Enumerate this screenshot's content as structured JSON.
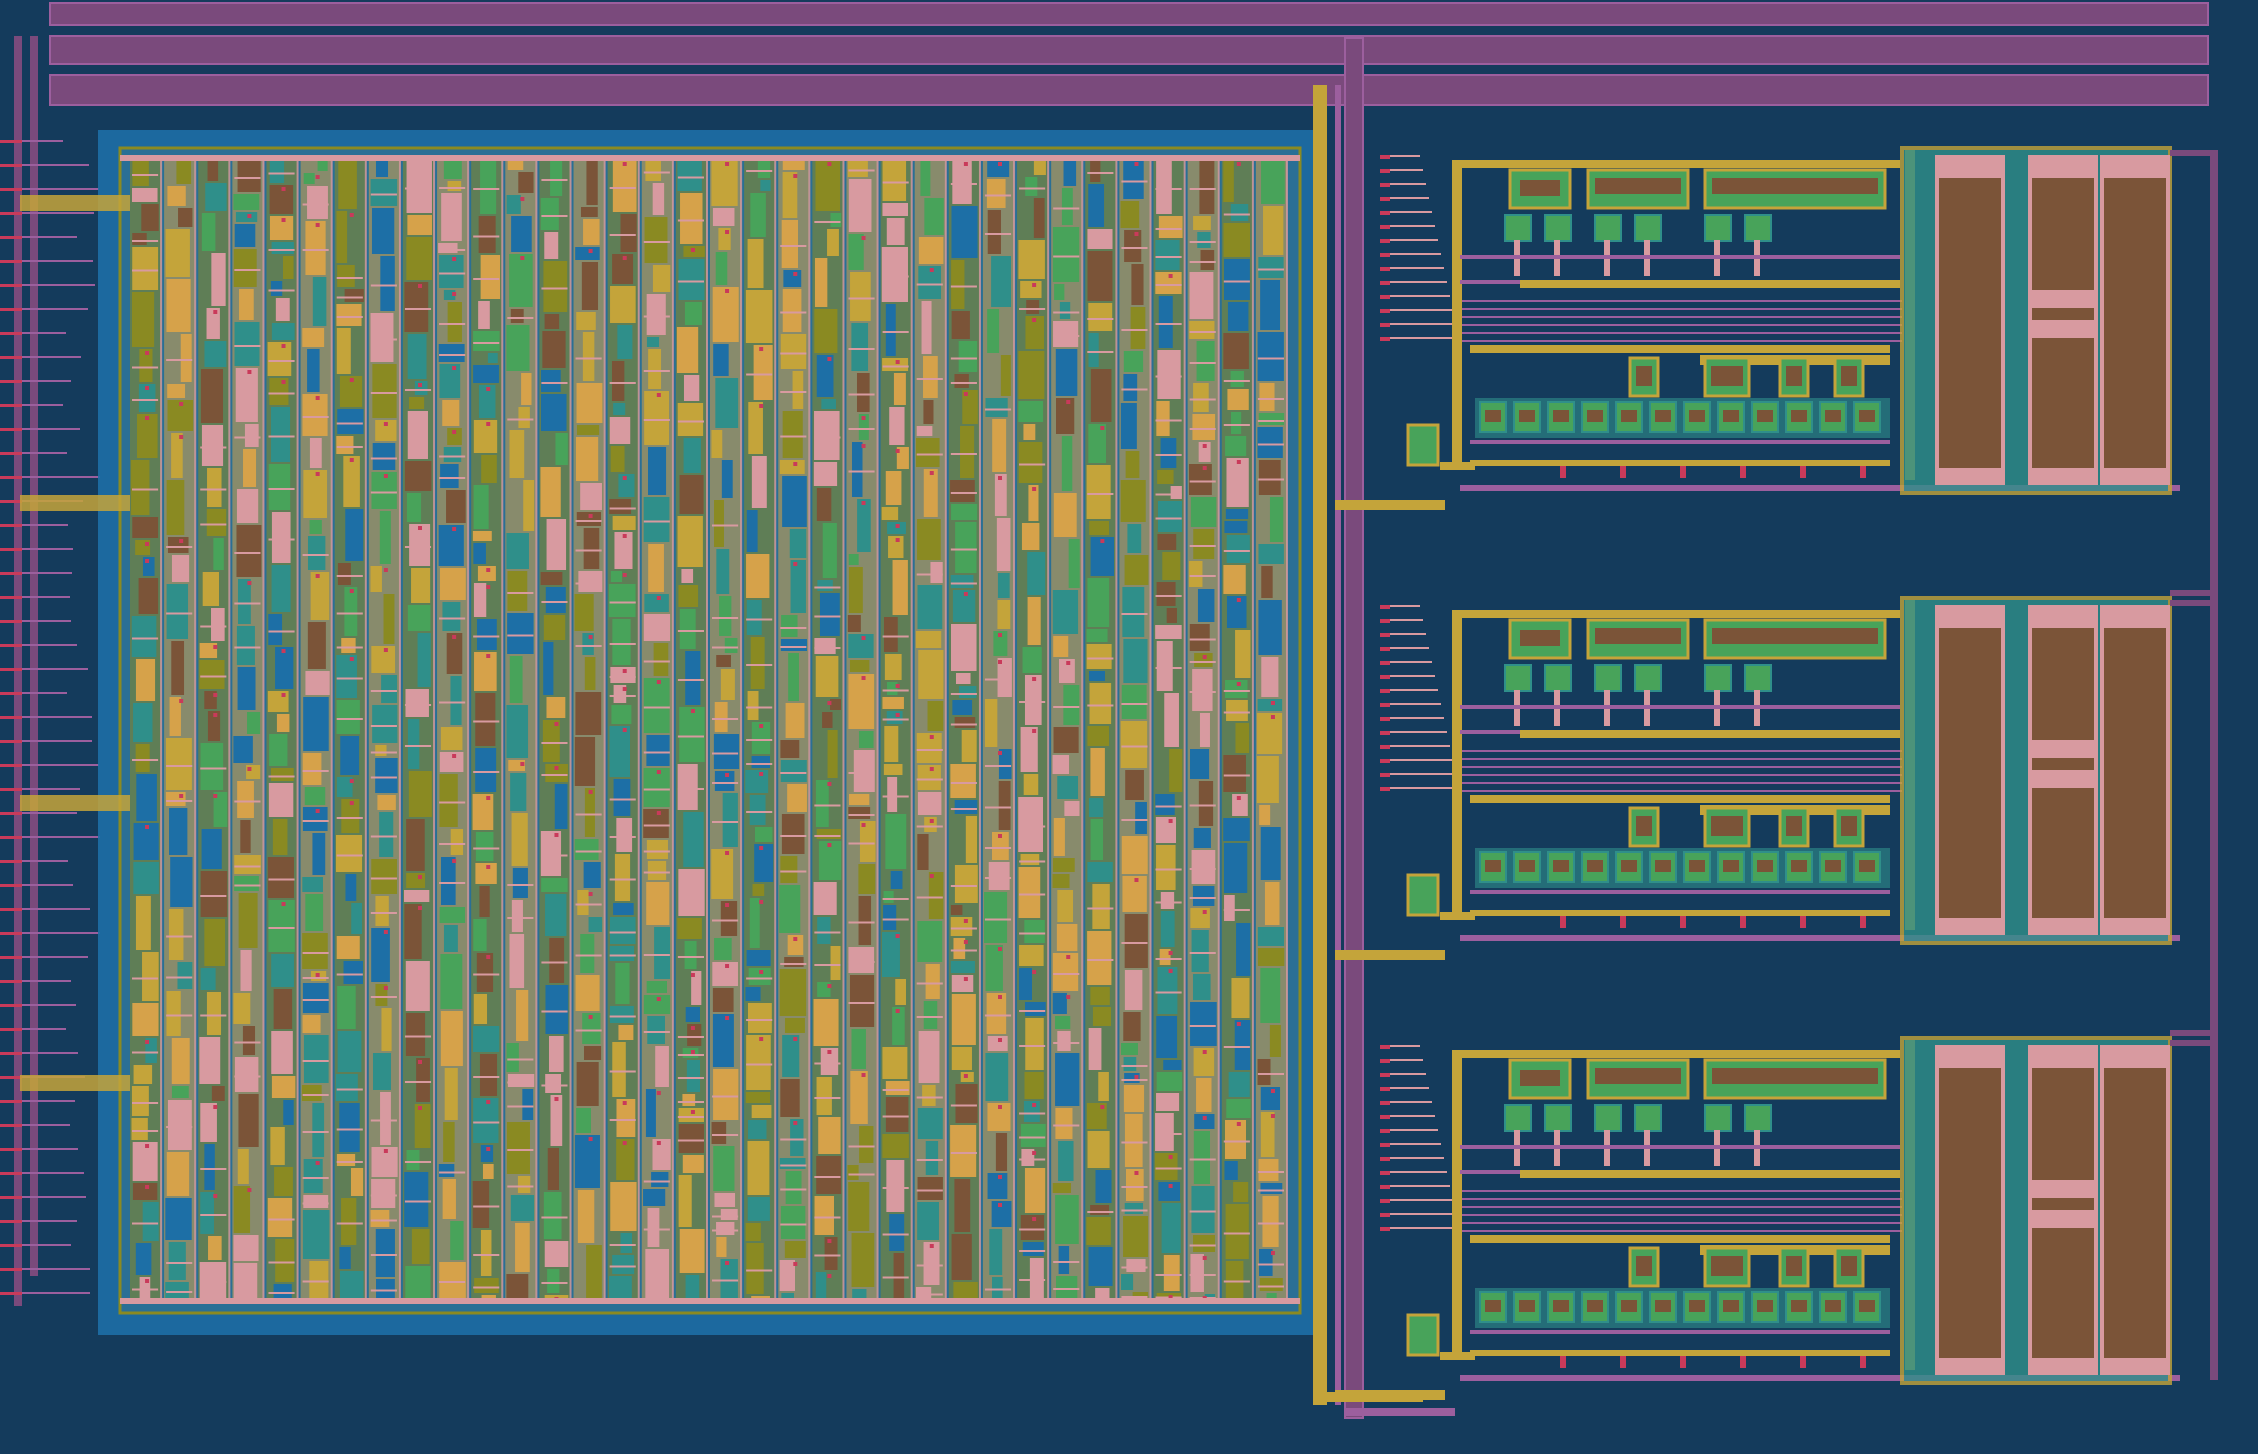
{
  "palette": {
    "substrate": "#143b5c",
    "metal_purple": "#7a4a7c",
    "metal_purple_edge": "#9c5f9e",
    "metal_gold": "#c4a43a",
    "metal_olive": "#8a8a22",
    "poly_orange": "#d6a24a",
    "diff_brown": "#7b5438",
    "implant_pink": "#d89aa0",
    "well_blue": "#1d6fa6",
    "active_green": "#48a35a",
    "contact_red": "#c93a5a",
    "nwell_teal": "#2f8f8a"
  },
  "regions": [
    {
      "id": "power-rails-top",
      "kind": "metal-bus"
    },
    {
      "id": "digital-core-array",
      "kind": "standard-cell-block"
    },
    {
      "id": "vertical-spine",
      "kind": "metal-bus"
    },
    {
      "id": "analog-channel-1",
      "kind": "analog-macro"
    },
    {
      "id": "analog-channel-2",
      "kind": "analog-macro"
    },
    {
      "id": "analog-channel-3",
      "kind": "analog-macro"
    },
    {
      "id": "left-io-pins",
      "kind": "pin-row"
    }
  ],
  "core": {
    "columns": 34,
    "rows": 44,
    "seed": 1337
  },
  "analog": {
    "channels": 3,
    "capacitor_banks_per_channel": 3
  }
}
